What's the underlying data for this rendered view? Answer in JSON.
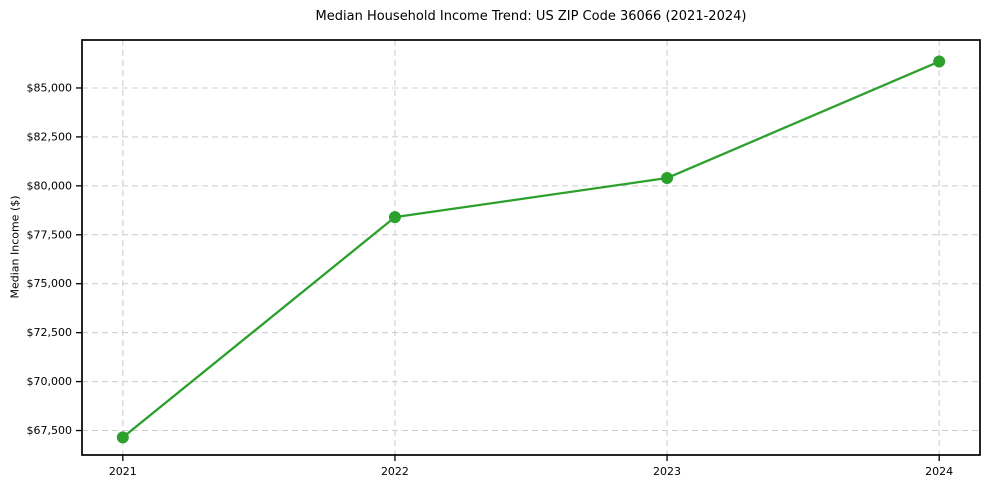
{
  "chart_data": {
    "type": "line",
    "title": "Median Household Income Trend: US ZIP Code 36066 (2021-2024)",
    "xlabel": "",
    "ylabel": "Median Income ($)",
    "x": [
      2021,
      2022,
      2023,
      2024
    ],
    "x_tick_labels": [
      "2021",
      "2022",
      "2023",
      "2024"
    ],
    "values": [
      67150,
      78400,
      80400,
      86350
    ],
    "y_ticks": [
      67500,
      70000,
      72500,
      75000,
      77500,
      80000,
      82500,
      85000
    ],
    "y_tick_labels": [
      "$67,500",
      "$70,000",
      "$72,500",
      "$75,000",
      "$77,500",
      "$80,000",
      "$82,500",
      "$85,000"
    ],
    "xlim": [
      2020.85,
      2024.15
    ],
    "ylim": [
      66250,
      87450
    ],
    "grid": "dashed",
    "legend": "none",
    "line_color": "#2ca02c",
    "marker": "circle",
    "grid_color": "#cccccc",
    "spine_color": "#000000",
    "background_color": "#ffffff"
  }
}
